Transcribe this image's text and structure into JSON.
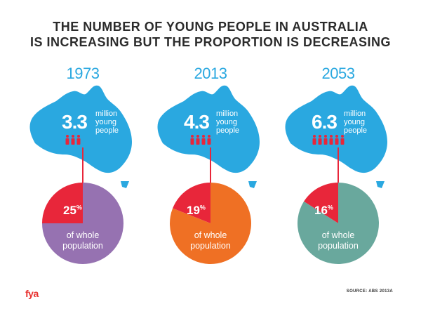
{
  "title_line1": "THE NUMBER OF YOUNG PEOPLE IN AUSTRALIA",
  "title_line2": "IS INCREASING BUT THE PROPORTION IS DECREASING",
  "words": {
    "million": "million",
    "young": "young",
    "people": "people",
    "of_whole": "of whole",
    "population": "population"
  },
  "percent_sign": "%",
  "logo": "fya",
  "source": "SOURCE: ABS 2013A",
  "colors": {
    "map": "#2aa8e0",
    "highlight": "#e8263a",
    "people_icon": "#e8263a",
    "title": "#2b2b2b"
  },
  "icons": [
    "australia-map-icon",
    "person-icon"
  ],
  "chart_data": [
    {
      "type": "pie",
      "year": "1973",
      "young_people_millions": "3.3",
      "person_icon_count": 3,
      "slices": [
        {
          "label": "25",
          "value": 25,
          "color": "#e8263a"
        },
        {
          "label": "of whole population",
          "value": 75,
          "color": "#9672b1"
        }
      ]
    },
    {
      "type": "pie",
      "year": "2013",
      "young_people_millions": "4.3",
      "person_icon_count": 4,
      "slices": [
        {
          "label": "19",
          "value": 19,
          "color": "#e8263a"
        },
        {
          "label": "of whole population",
          "value": 81,
          "color": "#ef7024"
        }
      ]
    },
    {
      "type": "pie",
      "year": "2053",
      "young_people_millions": "6.3",
      "person_icon_count": 6,
      "slices": [
        {
          "label": "16",
          "value": 16,
          "color": "#e8263a"
        },
        {
          "label": "of whole population",
          "value": 84,
          "color": "#69a89d"
        }
      ]
    }
  ]
}
